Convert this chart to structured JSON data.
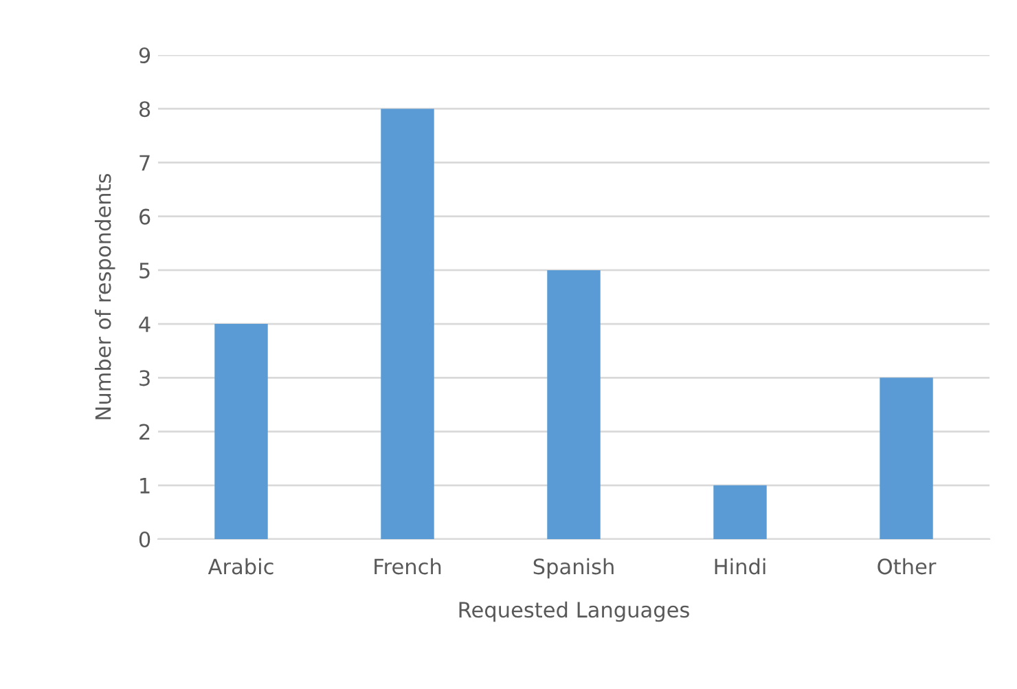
{
  "chart_data": {
    "type": "bar",
    "xlabel": "Requested Languages",
    "ylabel": "Number of respondents",
    "categories": [
      "Arabic",
      "French",
      "Spanish",
      "Hindi",
      "Other"
    ],
    "values": [
      4,
      8,
      5,
      1,
      3
    ],
    "color": "#5b9bd5",
    "ylim": [
      0,
      9
    ],
    "yticks": [
      0,
      1,
      2,
      3,
      4,
      5,
      6,
      7,
      8,
      9
    ],
    "grid": "y",
    "legend": false
  }
}
